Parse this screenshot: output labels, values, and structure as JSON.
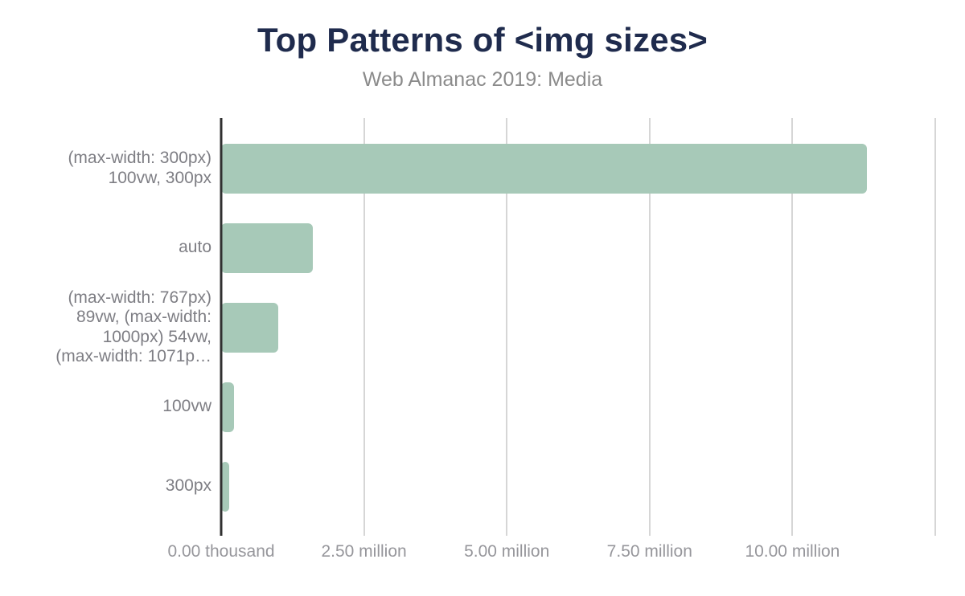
{
  "header": {
    "title": "Top Patterns of <img sizes>",
    "subtitle": "Web Almanac 2019: Media"
  },
  "chart_data": {
    "type": "bar",
    "orientation": "horizontal",
    "title": "Top Patterns of <img sizes>",
    "subtitle": "Web Almanac 2019: Media",
    "xlabel": "",
    "ylabel": "",
    "grid": true,
    "legend": false,
    "x_axis": {
      "min": 0,
      "max": 12500000,
      "gridline_interval": 2500000,
      "gridline_values": [
        0,
        2500000,
        5000000,
        7500000,
        10000000,
        12500000
      ],
      "tick_values": [
        0,
        2500000,
        5000000,
        7500000,
        10000000
      ],
      "tick_labels": [
        "0.00 thousand",
        "2.50 million",
        "5.00 million",
        "7.50 million",
        "10.00 million"
      ]
    },
    "bars": [
      {
        "label": "(max-width: 300px) 100vw, 300px",
        "label_lines": [
          "(max-width: 300px)",
          "100vw, 300px"
        ],
        "value": 11300000
      },
      {
        "label": "auto",
        "label_lines": [
          "auto"
        ],
        "value": 1600000
      },
      {
        "label": "(max-width: 767px) 89vw, (max-width: 1000px) 54vw, (max-width: 1071p…",
        "label_lines": [
          "(max-width: 767px)",
          "89vw, (max-width:",
          "1000px) 54vw,",
          "(max-width: 1071p…"
        ],
        "value": 1000000
      },
      {
        "label": "100vw",
        "label_lines": [
          "100vw"
        ],
        "value": 230000
      },
      {
        "label": "300px",
        "label_lines": [
          "300px"
        ],
        "value": 140000
      }
    ],
    "colors": {
      "bar": "#A7C9B8",
      "title": "#1F2B4D",
      "subtitle": "#8B8B8B",
      "category_label": "#7E7E84",
      "tick_label": "#96969B",
      "gridline": "#D6D6D6",
      "axis_line": "#303030",
      "background": "#FFFFFF"
    }
  }
}
